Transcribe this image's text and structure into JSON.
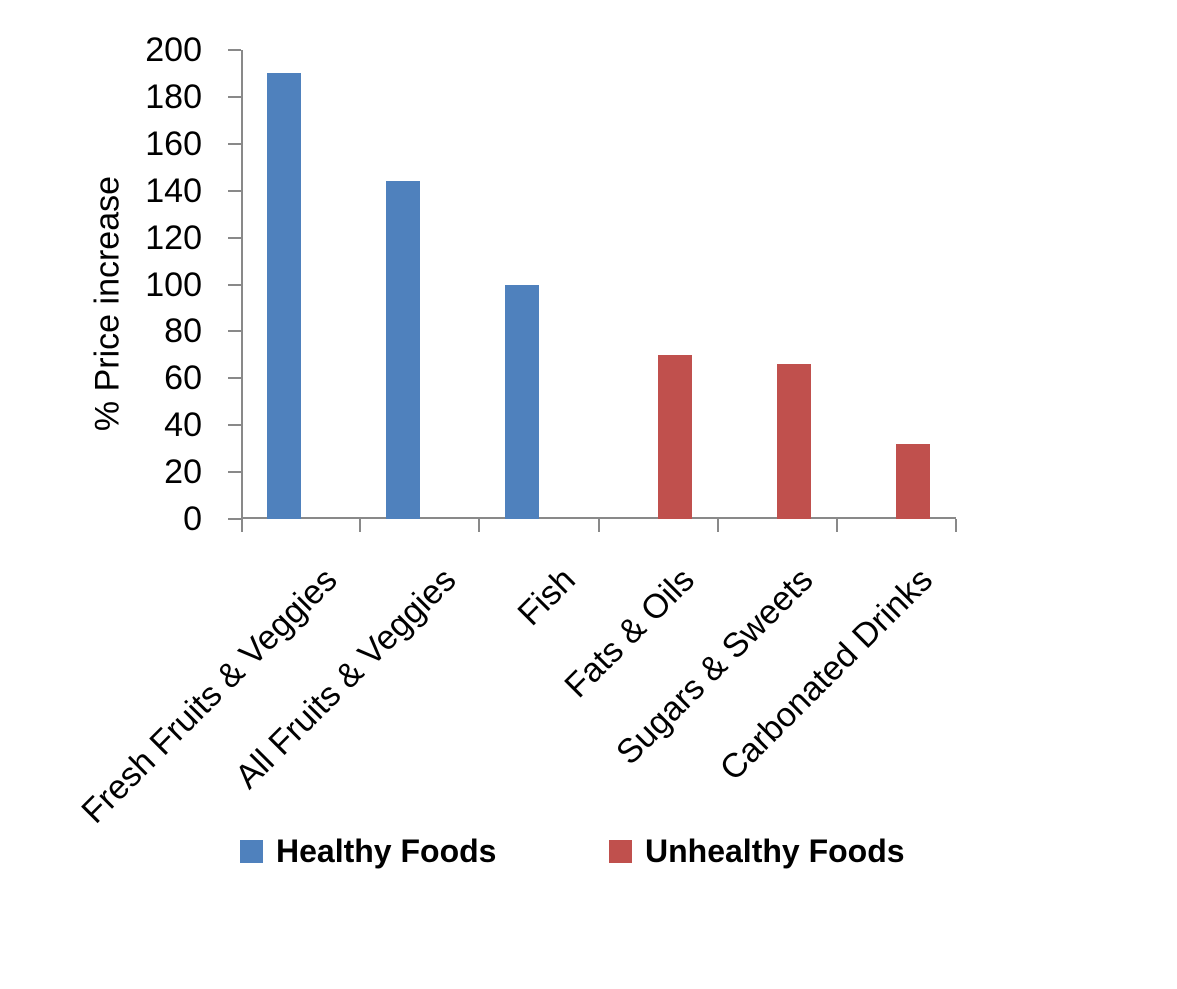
{
  "chart_data": {
    "type": "bar",
    "title": "",
    "xlabel": "",
    "ylabel": "% Price increase",
    "ylim": [
      0,
      200
    ],
    "yticks": [
      0,
      20,
      40,
      60,
      80,
      100,
      120,
      140,
      160,
      180,
      200
    ],
    "categories": [
      "Fresh Fruits & Veggies",
      "All Fruits & Veggies",
      "Fish",
      "Fats & Oils",
      "Sugars & Sweets",
      "Carbonated Drinks"
    ],
    "series": [
      {
        "name": "Healthy Foods",
        "color": "#4F81BD",
        "values": [
          190,
          144,
          100,
          null,
          null,
          null
        ]
      },
      {
        "name": "Unhealthy Foods",
        "color": "#C0504D",
        "values": [
          null,
          null,
          null,
          70,
          66,
          32
        ]
      }
    ],
    "legend_position": "bottom",
    "grid": false,
    "axis_color": "#898989",
    "text_color": "#000000",
    "background_color": "#FFFFFF"
  }
}
